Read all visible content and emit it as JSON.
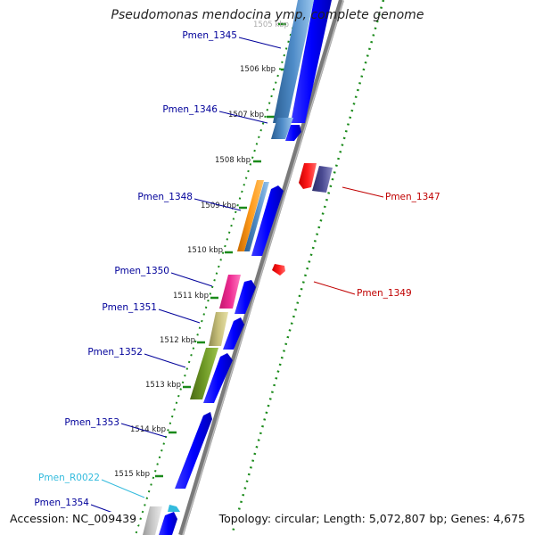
{
  "title": "Pseudomonas mendocina ymp, complete genome",
  "accession": "Accession: NC_009439",
  "topology": "Topology: circular; Length: 5,072,807 bp; Genes: 4,675",
  "kbp_ticks": [
    "1505 kbp",
    "1506 kbp",
    "1507 kbp",
    "1508 kbp",
    "1509 kbp",
    "1510 kbp",
    "1511 kbp",
    "1512 kbp",
    "1513 kbp",
    "1514 kbp",
    "1515 kbp"
  ],
  "gene_labels": {
    "pmen_1345": "Pmen_1345",
    "pmen_1346": "Pmen_1346",
    "pmen_1347": "Pmen_1347",
    "pmen_1348": "Pmen_1348",
    "pmen_1349": "Pmen_1349",
    "pmen_1350": "Pmen_1350",
    "pmen_1351": "Pmen_1351",
    "pmen_1352": "Pmen_1352",
    "pmen_1353": "Pmen_1353",
    "pmen_r0022": "Pmen_R0022",
    "pmen_1354": "Pmen_1354"
  },
  "colors": {
    "backbone": "#8c8c8c",
    "cds_blue": "#0000ff",
    "reverse_red": "#ff0000",
    "label_blue": "#00009a",
    "label_red": "#c00000",
    "label_cyan": "#33bbdd",
    "tick_green": "#1a8a1a"
  }
}
